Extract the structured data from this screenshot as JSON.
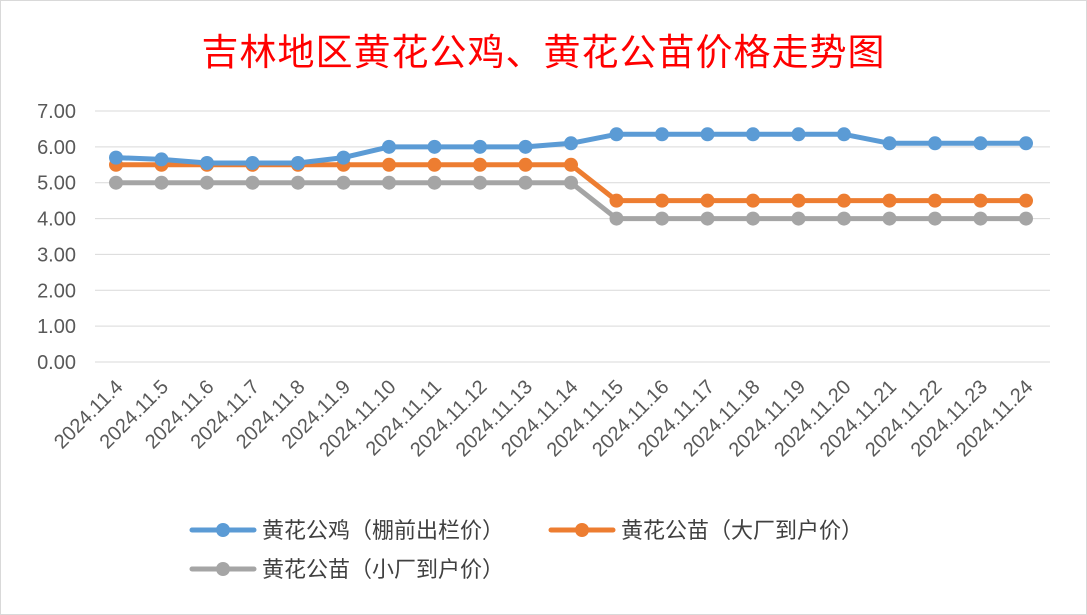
{
  "chart_data": {
    "type": "line",
    "title": "吉林地区黄花公鸡、黄花公苗价格走势图",
    "xlabel": "",
    "ylabel": "",
    "categories": [
      "2024.11.4",
      "2024.11.5",
      "2024.11.6",
      "2024.11.7",
      "2024.11.8",
      "2024.11.9",
      "2024.11.10",
      "2024.11.11",
      "2024.11.12",
      "2024.11.13",
      "2024.11.14",
      "2024.11.15",
      "2024.11.16",
      "2024.11.17",
      "2024.11.18",
      "2024.11.19",
      "2024.11.20",
      "2024.11.21",
      "2024.11.22",
      "2024.11.23",
      "2024.11.24"
    ],
    "ylim": [
      0,
      7
    ],
    "yticks": [
      "0.00",
      "1.00",
      "2.00",
      "3.00",
      "4.00",
      "5.00",
      "6.00",
      "7.00"
    ],
    "grid": true,
    "legend_position": "bottom",
    "series": [
      {
        "name": "黄花公鸡（棚前出栏价）",
        "color": "#5b9bd5",
        "values": [
          5.7,
          5.65,
          5.55,
          5.55,
          5.55,
          5.7,
          6.0,
          6.0,
          6.0,
          6.0,
          6.1,
          6.35,
          6.35,
          6.35,
          6.35,
          6.35,
          6.35,
          6.1,
          6.1,
          6.1,
          6.1
        ]
      },
      {
        "name": "黄花公苗（大厂到户价）",
        "color": "#ed7d31",
        "values": [
          5.5,
          5.5,
          5.5,
          5.5,
          5.5,
          5.5,
          5.5,
          5.5,
          5.5,
          5.5,
          5.5,
          4.5,
          4.5,
          4.5,
          4.5,
          4.5,
          4.5,
          4.5,
          4.5,
          4.5,
          4.5
        ]
      },
      {
        "name": "黄花公苗（小厂到户价）",
        "color": "#a5a5a5",
        "values": [
          5.0,
          5.0,
          5.0,
          5.0,
          5.0,
          5.0,
          5.0,
          5.0,
          5.0,
          5.0,
          5.0,
          4.0,
          4.0,
          4.0,
          4.0,
          4.0,
          4.0,
          4.0,
          4.0,
          4.0,
          4.0
        ]
      }
    ]
  }
}
